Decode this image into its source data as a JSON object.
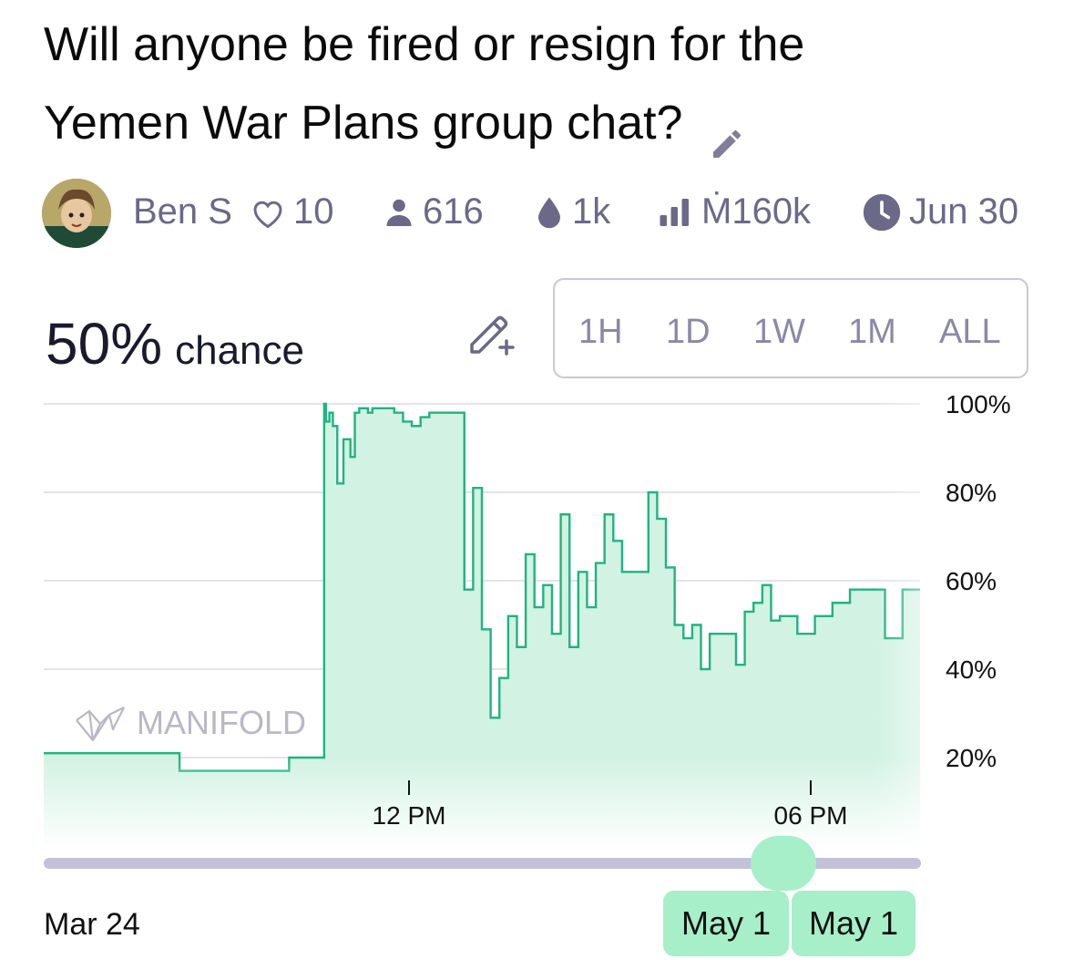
{
  "title": "Will anyone be fired or resign for the Yemen War Plans group chat?",
  "creator": {
    "name": "Ben S",
    "likes": "10"
  },
  "stats": {
    "traders": "616",
    "liquidity": "1k",
    "volume": "Ṁ160k",
    "close_date": "Jun 30"
  },
  "probability": {
    "value": "50%",
    "label": "chance"
  },
  "time_ranges": [
    "1H",
    "1D",
    "1W",
    "1M",
    "ALL"
  ],
  "watermark": "MANIFOLD",
  "slider": {
    "start_label": "Mar 24",
    "from_label": "May 1",
    "to_label": "May 1"
  },
  "colors": {
    "line": "#1fb47e",
    "fill": "#d2f2e3",
    "accent": "#a6efc9",
    "muted": "#6b6988"
  },
  "chart_data": {
    "type": "area",
    "y_ticks": [
      "100%",
      "80%",
      "60%",
      "40%",
      "20%"
    ],
    "x_ticks": [
      "12 PM",
      "06 PM"
    ],
    "ylim": [
      0,
      100
    ],
    "grid": true,
    "series": [
      {
        "x": [
          0,
          1.55,
          1.55,
          2.8,
          2.8,
          3.2,
          3.22,
          3.26,
          3.3,
          3.35,
          3.42,
          3.5,
          3.55,
          3.6,
          3.66,
          3.7,
          3.75,
          3.8,
          3.9,
          4.0,
          4.1,
          4.2,
          4.3,
          4.4,
          4.5,
          4.6,
          4.7,
          4.8,
          4.9,
          5.0,
          5.1,
          5.2,
          5.3,
          5.4,
          5.5,
          5.6,
          5.7,
          5.8,
          5.9,
          6.0,
          6.1,
          6.2,
          6.3,
          6.4,
          6.5,
          6.6,
          6.7,
          6.8,
          6.9,
          7.0,
          7.1,
          7.2,
          7.3,
          7.4,
          7.5,
          7.6,
          7.7,
          7.8,
          7.9,
          8.0,
          8.1,
          8.2,
          8.3,
          8.4,
          8.6,
          8.8,
          9.0,
          9.2,
          9.4,
          9.6,
          9.8,
          10.0
        ],
        "values": [
          21,
          21,
          17,
          17,
          20,
          100,
          96,
          98,
          95,
          82,
          92,
          88,
          98,
          99,
          99,
          98,
          99,
          99,
          99,
          98,
          96,
          95,
          97,
          98,
          98,
          98,
          98,
          58,
          81,
          49,
          29,
          38,
          52,
          45,
          66,
          54,
          59,
          48,
          75,
          45,
          62,
          54,
          64,
          75,
          69,
          62,
          62,
          62,
          80,
          74,
          63,
          50,
          47,
          50,
          40,
          48,
          48,
          48,
          41,
          53,
          55,
          59,
          51,
          52,
          48,
          52,
          55,
          58,
          58,
          47,
          58,
          58
        ]
      }
    ]
  }
}
